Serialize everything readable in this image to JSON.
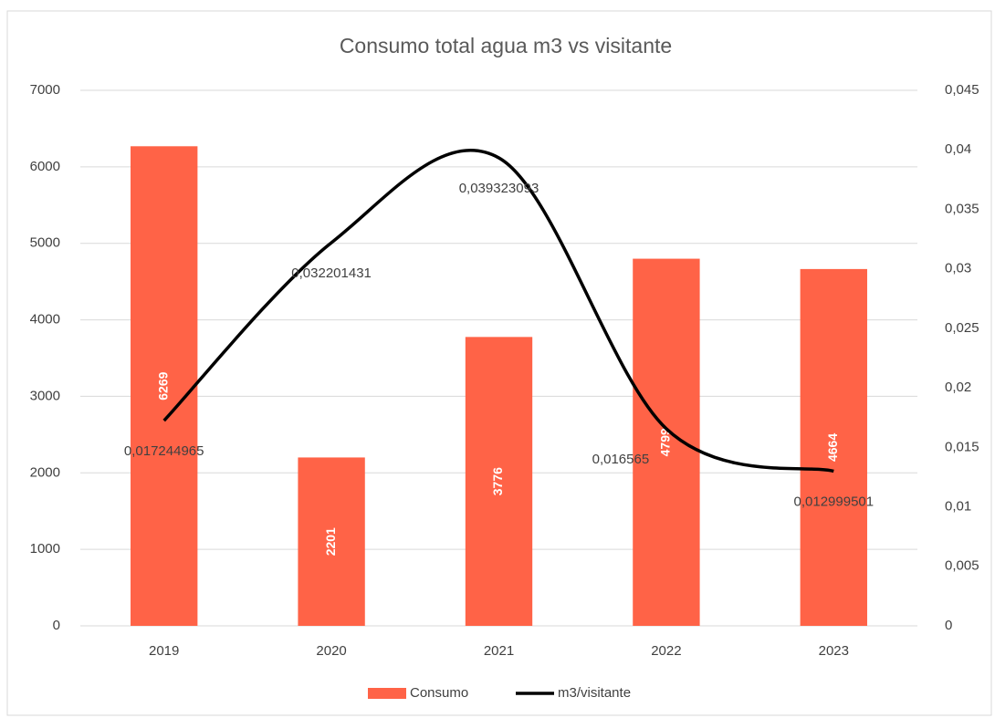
{
  "chart_data": {
    "type": "bar",
    "title": "Consumo total agua m3 vs visitante",
    "categories": [
      "2019",
      "2020",
      "2021",
      "2022",
      "2023"
    ],
    "series": [
      {
        "name": "Consumo",
        "type": "bar",
        "color": "#ff6347",
        "values": [
          6269,
          2201,
          3776,
          4799,
          4664
        ]
      },
      {
        "name": "m3/visitante",
        "type": "line",
        "axis": "y2",
        "color": "#000000",
        "values": [
          0.017244965,
          0.032201431,
          0.039323093,
          0.016565,
          0.012999501
        ],
        "value_labels": [
          "0,017244965",
          "0,032201431",
          "0,039323093",
          "0,016565",
          "0,012999501"
        ]
      }
    ],
    "ylim": [
      0,
      7000
    ],
    "yticks": [
      0,
      1000,
      2000,
      3000,
      4000,
      5000,
      6000,
      7000
    ],
    "y2lim": [
      0,
      0.045
    ],
    "y2ticks": [
      0,
      {
        "value": 0.005,
        "label": "0,005"
      },
      {
        "value": 0.01,
        "label": "0,01"
      },
      {
        "value": 0.015,
        "label": "0,015"
      },
      {
        "value": 0.02,
        "label": "0,02"
      },
      {
        "value": 0.025,
        "label": "0,025"
      },
      {
        "value": 0.03,
        "label": "0,03"
      },
      {
        "value": 0.035,
        "label": "0,035"
      },
      {
        "value": 0.04,
        "label": "0,04"
      },
      {
        "value": 0.045,
        "label": "0,045"
      }
    ],
    "grid": true,
    "legend": "bottom"
  }
}
